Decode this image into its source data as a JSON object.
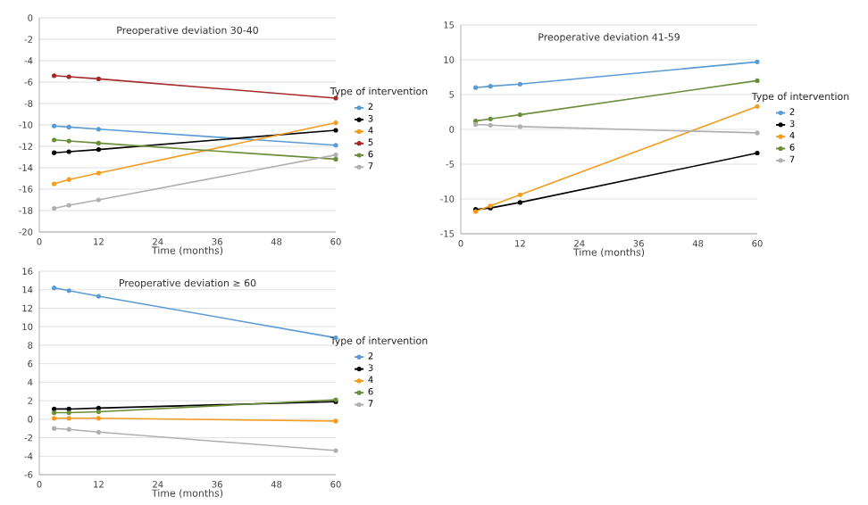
{
  "chart_data": [
    {
      "type": "line",
      "title": "Preoperative deviation 30-40",
      "xlabel": "Time (months)",
      "legend_title": "Type of intervention",
      "x": [
        3,
        6,
        12,
        60
      ],
      "xlim": [
        0,
        60
      ],
      "xticks": [
        0,
        12,
        24,
        36,
        48,
        60
      ],
      "ylim": [
        -20,
        0
      ],
      "yticks": [
        -20,
        -18,
        -16,
        -14,
        -12,
        -10,
        -8,
        -6,
        -4,
        -2,
        0
      ],
      "grid": "y",
      "legend": "right",
      "marker": "circle",
      "line_style": "solid",
      "series": [
        {
          "name": "2",
          "color": "#5b9bd5",
          "values": [
            -10.1,
            -10.2,
            -10.4,
            -11.9
          ]
        },
        {
          "name": "3",
          "color": "#000000",
          "values": [
            -12.6,
            -12.5,
            -12.3,
            -10.5
          ]
        },
        {
          "name": "4",
          "color": "#f39c1e",
          "values": [
            -15.5,
            -15.1,
            -14.5,
            -9.8
          ]
        },
        {
          "name": "5",
          "color": "#a52a2a",
          "values": [
            -5.4,
            -5.5,
            -5.7,
            -7.5
          ]
        },
        {
          "name": "6",
          "color": "#6b8e3a",
          "values": [
            -11.4,
            -11.5,
            -11.7,
            -13.2
          ]
        },
        {
          "name": "7",
          "color": "#b0b0b0",
          "values": [
            -17.8,
            -17.5,
            -17.0,
            -12.8
          ]
        }
      ]
    },
    {
      "type": "line",
      "title": "Preoperative deviation 41-59",
      "xlabel": "Time (months)",
      "legend_title": "Type of intervention",
      "x": [
        3,
        6,
        12,
        60
      ],
      "xlim": [
        0,
        60
      ],
      "xticks": [
        0,
        12,
        24,
        36,
        48,
        60
      ],
      "ylim": [
        -15,
        15
      ],
      "yticks": [
        -15,
        -10,
        -5,
        0,
        5,
        10,
        15
      ],
      "grid": "y",
      "legend": "right",
      "marker": "circle",
      "line_style": "solid",
      "series": [
        {
          "name": "2",
          "color": "#5b9bd5",
          "values": [
            6.0,
            6.2,
            6.5,
            9.7
          ]
        },
        {
          "name": "3",
          "color": "#000000",
          "values": [
            -11.5,
            -11.3,
            -10.5,
            -3.4
          ]
        },
        {
          "name": "4",
          "color": "#f39c1e",
          "values": [
            -11.8,
            -11.0,
            -9.4,
            3.3
          ]
        },
        {
          "name": "6",
          "color": "#6b8e3a",
          "values": [
            1.2,
            1.5,
            2.1,
            7.0
          ]
        },
        {
          "name": "7",
          "color": "#b0b0b0",
          "values": [
            0.7,
            0.6,
            0.4,
            -0.5
          ]
        }
      ]
    },
    {
      "type": "line",
      "title": "Preoperative deviation ≥ 60",
      "xlabel": "Time (months)",
      "legend_title": "Type of intervention",
      "x": [
        3,
        6,
        12,
        60
      ],
      "xlim": [
        0,
        60
      ],
      "xticks": [
        0,
        12,
        24,
        36,
        48,
        60
      ],
      "ylim": [
        -6,
        16
      ],
      "yticks": [
        -6,
        -4,
        -2,
        0,
        2,
        4,
        6,
        8,
        10,
        12,
        14,
        16
      ],
      "grid": "y",
      "legend": "right",
      "marker": "circle",
      "line_style": "solid",
      "series": [
        {
          "name": "2",
          "color": "#5b9bd5",
          "values": [
            14.2,
            13.9,
            13.3,
            8.8
          ]
        },
        {
          "name": "3",
          "color": "#000000",
          "values": [
            1.1,
            1.1,
            1.2,
            1.9
          ]
        },
        {
          "name": "4",
          "color": "#f39c1e",
          "values": [
            0.1,
            0.1,
            0.1,
            -0.2
          ]
        },
        {
          "name": "6",
          "color": "#6b8e3a",
          "values": [
            0.7,
            0.7,
            0.8,
            2.1
          ]
        },
        {
          "name": "7",
          "color": "#b0b0b0",
          "values": [
            -1.0,
            -1.1,
            -1.4,
            -3.4
          ]
        }
      ]
    }
  ]
}
